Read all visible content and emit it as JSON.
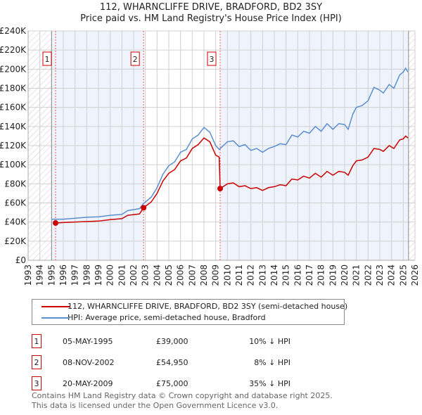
{
  "title": "112, WHARNCLIFFE DRIVE, BRADFORD, BD2 3SY",
  "subtitle": "Price paid vs. HM Land Registry's House Price Index (HPI)",
  "chart_data": {
    "type": "line",
    "xlim": [
      1993,
      2026
    ],
    "ylim": [
      0,
      240000
    ],
    "x_ticks": [
      "1993",
      "1994",
      "1995",
      "1996",
      "1997",
      "1998",
      "1999",
      "2000",
      "2001",
      "2002",
      "2003",
      "2004",
      "2005",
      "2006",
      "2007",
      "2008",
      "2009",
      "2010",
      "2011",
      "2012",
      "2013",
      "2014",
      "2015",
      "2016",
      "2017",
      "2018",
      "2019",
      "2020",
      "2021",
      "2022",
      "2023",
      "2024",
      "2025",
      "2026"
    ],
    "y_ticks": [
      "£0",
      "£20K",
      "£40K",
      "£60K",
      "£80K",
      "£100K",
      "£120K",
      "£140K",
      "£160K",
      "£180K",
      "£200K",
      "£220K",
      "£240K"
    ],
    "series": [
      {
        "name": "112, WHARNCLIFFE DRIVE, BRADFORD, BD2 3SY (semi-detached house)",
        "color": "#cc0000",
        "x": [
          1995.34,
          1996,
          1997,
          1998,
          1999,
          2000,
          2001,
          2001.5,
          2002.5,
          2002.85,
          2003.5,
          2004,
          2004.5,
          2005,
          2005.5,
          2006,
          2006.5,
          2007,
          2007.5,
          2008,
          2008.5,
          2009,
          2009.3,
          2009.38,
          2010,
          2010.5,
          2011,
          2011.5,
          2012,
          2012.5,
          2013,
          2013.5,
          2014,
          2014.5,
          2015,
          2015.5,
          2016,
          2016.5,
          2017,
          2017.5,
          2018,
          2018.5,
          2019,
          2019.5,
          2020,
          2020.3,
          2020.7,
          2021,
          2021.5,
          2022,
          2022.5,
          2023,
          2023.3,
          2023.8,
          2024.2,
          2024.7,
          2025,
          2025.2,
          2025.4
        ],
        "y": [
          39,
          39.5,
          40,
          40.5,
          41,
          42.5,
          43.5,
          47,
          48.5,
          54.95,
          61,
          70,
          83,
          91,
          95,
          104,
          107,
          117,
          121,
          128,
          124,
          110,
          108,
          75,
          80,
          81,
          77,
          78,
          75,
          76,
          73,
          76,
          77,
          79,
          78,
          85,
          84,
          88,
          86,
          91,
          87,
          93,
          89,
          93,
          92,
          89,
          99,
          104,
          105,
          108,
          117,
          116,
          114,
          120,
          117,
          126,
          127,
          130,
          128
        ]
      },
      {
        "name": "HPI: Average price, semi-detached house, Bradford",
        "color": "#5b8fd0",
        "x": [
          1995,
          1996,
          1997,
          1998,
          1999,
          2000,
          2001,
          2001.5,
          2002.5,
          2002.85,
          2003.5,
          2004,
          2004.5,
          2005,
          2005.5,
          2006,
          2006.5,
          2007,
          2007.5,
          2008,
          2008.5,
          2009,
          2009.3,
          2010,
          2010.5,
          2011,
          2011.5,
          2012,
          2012.5,
          2013,
          2013.5,
          2014,
          2014.5,
          2015,
          2015.5,
          2016,
          2016.5,
          2017,
          2017.5,
          2018,
          2018.5,
          2019,
          2019.5,
          2020,
          2020.3,
          2020.7,
          2021,
          2021.5,
          2022,
          2022.5,
          2023,
          2023.3,
          2023.8,
          2024.2,
          2024.7,
          2025,
          2025.2,
          2025.4
        ],
        "y": [
          43,
          43,
          44,
          45,
          45.5,
          47,
          48,
          52,
          54,
          59.5,
          66,
          76,
          90,
          99,
          103,
          113,
          116,
          127,
          131,
          139,
          134,
          120,
          116,
          124,
          125,
          119,
          121,
          115,
          117,
          113,
          117,
          119,
          122,
          121,
          131,
          129,
          135,
          133,
          140,
          135,
          143,
          137,
          143,
          142,
          137,
          153,
          160,
          162,
          167,
          181,
          178,
          175,
          184,
          180,
          194,
          197,
          201,
          197
        ]
      }
    ],
    "y_unit": "thousands GBP",
    "sales": [
      {
        "label": "1",
        "x": 2002.85,
        "y": 54.95,
        "x0": 1995.34,
        "y0": 39
      }
    ],
    "markers": [
      {
        "label": "1",
        "x": 1995.34,
        "y": 39
      },
      {
        "label": "2",
        "x": 2002.85,
        "y": 54.95
      },
      {
        "label": "3",
        "x": 2009.38,
        "y": 75
      }
    ],
    "legend_position": "below"
  },
  "legend": [
    "112, WHARNCLIFFE DRIVE, BRADFORD, BD2 3SY (semi-detached house)",
    "HPI: Average price, semi-detached house, Bradford"
  ],
  "table": [
    {
      "num": "1",
      "date": "05-MAY-1995",
      "price": "£39,000",
      "hpi": "10% ↓ HPI"
    },
    {
      "num": "2",
      "date": "08-NOV-2002",
      "price": "£54,950",
      "hpi": "8% ↓ HPI"
    },
    {
      "num": "3",
      "date": "20-MAY-2009",
      "price": "£75,000",
      "hpi": "35% ↓ HPI"
    }
  ],
  "footer": [
    "Contains HM Land Registry data © Crown copyright and database right 2025.",
    "This data is licensed under the Open Government Licence v3.0."
  ]
}
